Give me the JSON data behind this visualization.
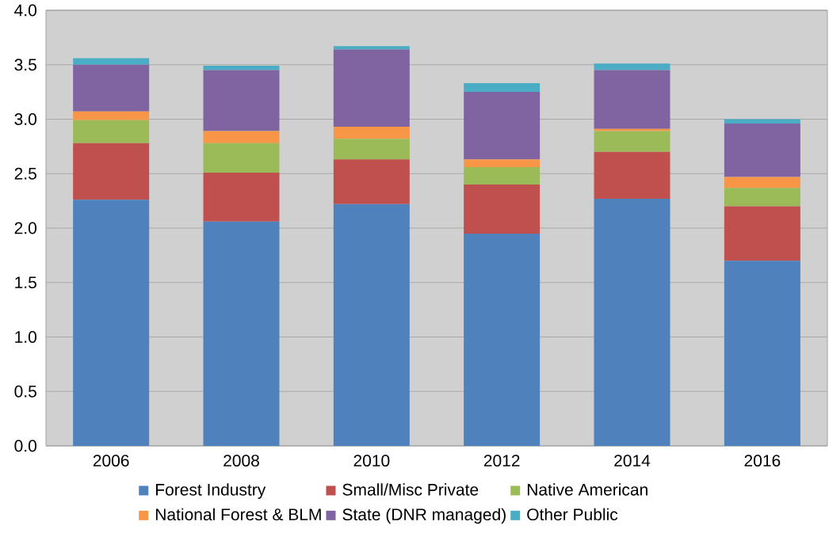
{
  "chart_data": {
    "type": "bar",
    "stacked": true,
    "categories": [
      "2006",
      "2008",
      "2010",
      "2012",
      "2014",
      "2016"
    ],
    "series": [
      {
        "name": "Forest Industry",
        "color": "#4f81bd",
        "values": [
          2.26,
          2.06,
          2.22,
          1.95,
          2.27,
          1.7
        ]
      },
      {
        "name": "Small/Misc Private",
        "color": "#c0504d",
        "values": [
          0.52,
          0.45,
          0.41,
          0.45,
          0.43,
          0.5
        ]
      },
      {
        "name": "Native American",
        "color": "#9bbb59",
        "values": [
          0.21,
          0.27,
          0.19,
          0.16,
          0.19,
          0.17
        ]
      },
      {
        "name": "National Forest & BLM",
        "color": "#f79646",
        "values": [
          0.08,
          0.11,
          0.11,
          0.07,
          0.02,
          0.1
        ]
      },
      {
        "name": "State (DNR managed)",
        "color": "#8064a2",
        "values": [
          0.43,
          0.56,
          0.71,
          0.62,
          0.54,
          0.49
        ]
      },
      {
        "name": "Other Public",
        "color": "#4bacc6",
        "values": [
          0.06,
          0.04,
          0.03,
          0.08,
          0.06,
          0.04
        ]
      }
    ],
    "ylim": [
      0,
      4
    ],
    "yticks": [
      {
        "value": 0,
        "label": "0.0"
      },
      {
        "value": 0.5,
        "label": "0.5"
      },
      {
        "value": 1,
        "label": "1.0"
      },
      {
        "value": 1.5,
        "label": "1.5"
      },
      {
        "value": 2,
        "label": "2.0"
      },
      {
        "value": 2.5,
        "label": "2.5"
      },
      {
        "value": 3,
        "label": "3.0"
      },
      {
        "value": 3.5,
        "label": "3.5"
      },
      {
        "value": 4,
        "label": "4.0"
      }
    ],
    "grid": "y",
    "legend": "bottom"
  }
}
